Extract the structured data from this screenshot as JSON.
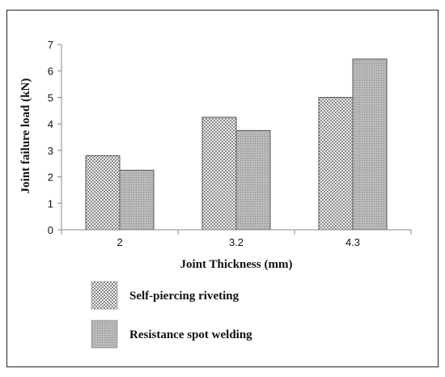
{
  "chart_data": {
    "type": "bar",
    "categories": [
      "2",
      "3.2",
      "4.3"
    ],
    "series": [
      {
        "name": "Self-piercing riveting",
        "values": [
          2.8,
          4.25,
          5.0
        ]
      },
      {
        "name": "Resistance spot welding",
        "values": [
          2.25,
          3.75,
          6.45
        ]
      }
    ],
    "title": "",
    "xlabel": "Joint Thickness (mm)",
    "ylabel": "Joint failure load (kN)",
    "ylim": [
      0,
      7
    ],
    "yticks": [
      0,
      1,
      2,
      3,
      4,
      5,
      6,
      7
    ],
    "grid": false,
    "legend": "bottom"
  }
}
